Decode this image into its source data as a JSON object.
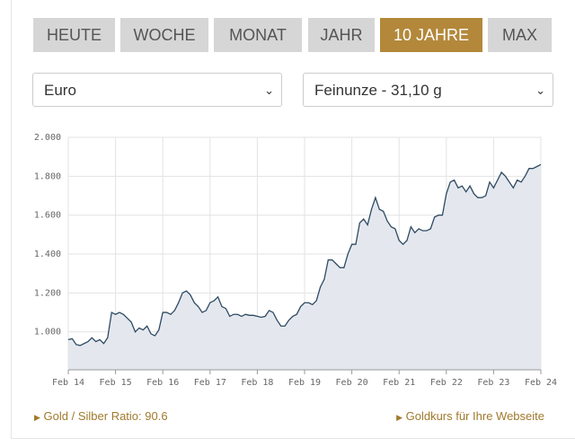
{
  "tabs": [
    "HEUTE",
    "WOCHE",
    "MONAT",
    "JAHR",
    "10 JAHRE",
    "MAX"
  ],
  "active_tab": 4,
  "selects": [
    "Euro",
    "Feinunze - 31,10 g"
  ],
  "links": [
    "Gold / Silber Ratio: 90.6",
    "Goldkurs für Ihre Webseite"
  ],
  "chart_data": {
    "type": "area",
    "x": [
      "2014-02",
      "2014-03",
      "2014-04",
      "2014-05",
      "2014-06",
      "2014-07",
      "2014-08",
      "2014-09",
      "2014-10",
      "2014-11",
      "2014-12",
      "2015-01",
      "2015-02",
      "2015-03",
      "2015-04",
      "2015-05",
      "2015-06",
      "2015-07",
      "2015-08",
      "2015-09",
      "2015-10",
      "2015-11",
      "2015-12",
      "2016-01",
      "2016-02",
      "2016-03",
      "2016-04",
      "2016-05",
      "2016-06",
      "2016-07",
      "2016-08",
      "2016-09",
      "2016-10",
      "2016-11",
      "2016-12",
      "2017-01",
      "2017-02",
      "2017-03",
      "2017-04",
      "2017-05",
      "2017-06",
      "2017-07",
      "2017-08",
      "2017-09",
      "2017-10",
      "2017-11",
      "2017-12",
      "2018-01",
      "2018-02",
      "2018-03",
      "2018-04",
      "2018-05",
      "2018-06",
      "2018-07",
      "2018-08",
      "2018-09",
      "2018-10",
      "2018-11",
      "2018-12",
      "2019-01",
      "2019-02",
      "2019-03",
      "2019-04",
      "2019-05",
      "2019-06",
      "2019-07",
      "2019-08",
      "2019-09",
      "2019-10",
      "2019-11",
      "2019-12",
      "2020-01",
      "2020-02",
      "2020-03",
      "2020-04",
      "2020-05",
      "2020-06",
      "2020-07",
      "2020-08",
      "2020-09",
      "2020-10",
      "2020-11",
      "2020-12",
      "2021-01",
      "2021-02",
      "2021-03",
      "2021-04",
      "2021-05",
      "2021-06",
      "2021-07",
      "2021-08",
      "2021-09",
      "2021-10",
      "2021-11",
      "2021-12",
      "2022-01",
      "2022-02",
      "2022-03",
      "2022-04",
      "2022-05",
      "2022-06",
      "2022-07",
      "2022-08",
      "2022-09",
      "2022-10",
      "2022-11",
      "2022-12",
      "2023-01",
      "2023-02",
      "2023-03",
      "2023-04",
      "2023-05",
      "2023-06",
      "2023-07",
      "2023-08",
      "2023-09",
      "2023-10",
      "2023-11",
      "2023-12",
      "2024-01",
      "2024-02"
    ],
    "values": [
      960,
      965,
      935,
      930,
      940,
      950,
      970,
      950,
      960,
      940,
      970,
      1100,
      1090,
      1100,
      1090,
      1070,
      1050,
      1000,
      1020,
      1010,
      1030,
      990,
      980,
      1010,
      1100,
      1100,
      1090,
      1110,
      1150,
      1200,
      1210,
      1190,
      1150,
      1130,
      1100,
      1110,
      1150,
      1160,
      1180,
      1130,
      1120,
      1080,
      1090,
      1090,
      1080,
      1090,
      1085,
      1085,
      1080,
      1075,
      1080,
      1110,
      1100,
      1060,
      1030,
      1030,
      1060,
      1080,
      1090,
      1130,
      1150,
      1150,
      1140,
      1160,
      1230,
      1270,
      1370,
      1370,
      1350,
      1330,
      1330,
      1400,
      1450,
      1450,
      1560,
      1580,
      1550,
      1630,
      1690,
      1630,
      1620,
      1570,
      1540,
      1530,
      1470,
      1450,
      1470,
      1540,
      1510,
      1530,
      1520,
      1520,
      1530,
      1590,
      1600,
      1600,
      1710,
      1770,
      1780,
      1740,
      1750,
      1720,
      1750,
      1710,
      1690,
      1690,
      1700,
      1770,
      1740,
      1780,
      1820,
      1800,
      1770,
      1740,
      1780,
      1770,
      1800,
      1840,
      1840,
      1850,
      1860
    ],
    "color": "#2e4a63",
    "fill": "#e4e8ee",
    "xlim": [
      "2014-02",
      "2024-02"
    ],
    "xticks": [
      {
        "value": "2014-02",
        "label": "Feb 14"
      },
      {
        "value": "2015-02",
        "label": "Feb 15"
      },
      {
        "value": "2016-02",
        "label": "Feb 16"
      },
      {
        "value": "2017-02",
        "label": "Feb 17"
      },
      {
        "value": "2018-02",
        "label": "Feb 18"
      },
      {
        "value": "2019-02",
        "label": "Feb 19"
      },
      {
        "value": "2020-02",
        "label": "Feb 20"
      },
      {
        "value": "2021-02",
        "label": "Feb 21"
      },
      {
        "value": "2022-02",
        "label": "Feb 22"
      },
      {
        "value": "2023-02",
        "label": "Feb 23"
      },
      {
        "value": "2024-02",
        "label": "Feb 24"
      }
    ],
    "ylim": [
      805,
      2000
    ],
    "yticks": [
      {
        "value": 1000,
        "label": "1.000"
      },
      {
        "value": 1200,
        "label": "1.200"
      },
      {
        "value": 1400,
        "label": "1.400"
      },
      {
        "value": 1600,
        "label": "1.600"
      },
      {
        "value": 1800,
        "label": "1.800"
      },
      {
        "value": 2000,
        "label": "2.000"
      }
    ],
    "grid": true
  }
}
